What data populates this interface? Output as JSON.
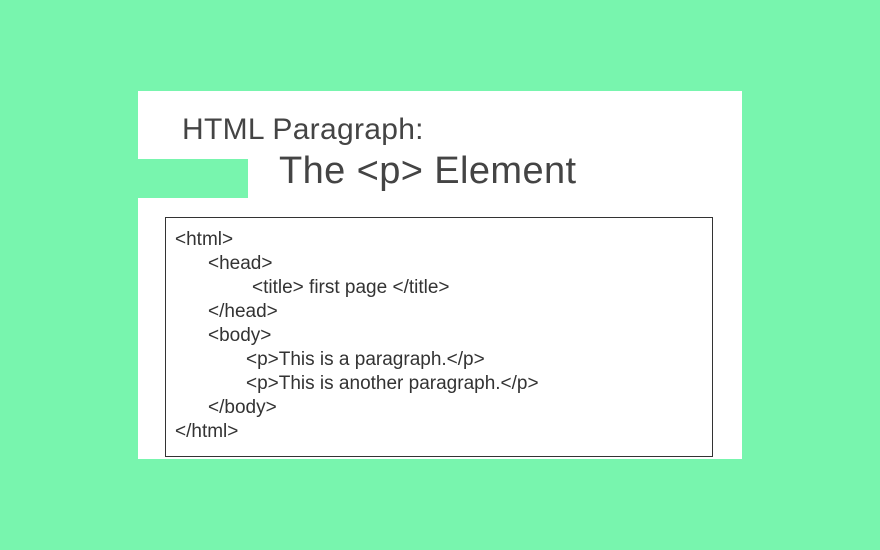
{
  "colors": {
    "background": "#78f5ae",
    "card": "#ffffff",
    "text": "#444444",
    "border": "#333333"
  },
  "title": {
    "line1": "HTML Paragraph:",
    "line2": "The <p> Element"
  },
  "code": {
    "lines": [
      "<html>",
      "<head>",
      "<title> first page </title>",
      "</head>",
      "<body>",
      "<p>This is a paragraph.</p>",
      "<p>This is another paragraph.</p>",
      "</body>",
      "</html>"
    ]
  }
}
